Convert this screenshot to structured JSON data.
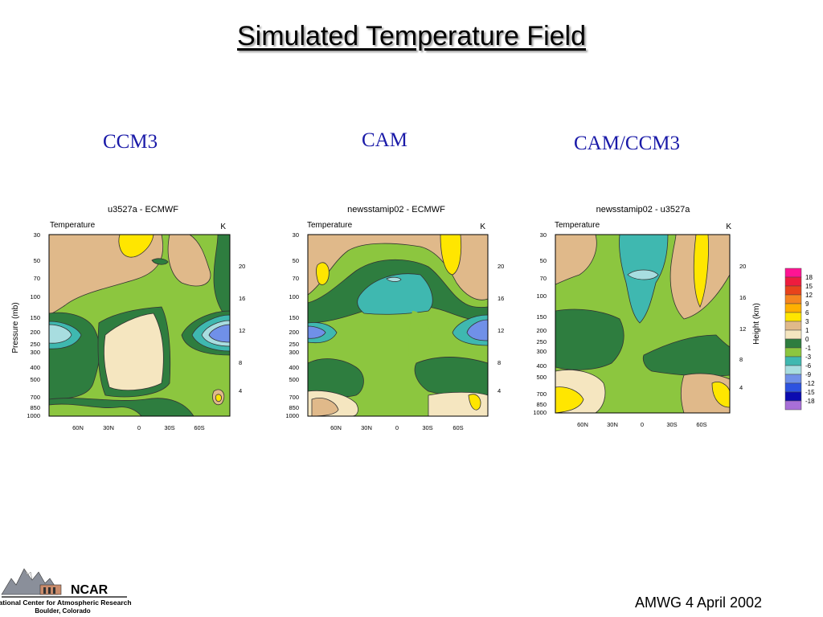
{
  "slide": {
    "title": "Simulated Temperature Field",
    "footer": "AMWG 4 April 2002"
  },
  "columns": [
    "CCM3",
    "CAM",
    "CAM/CCM3"
  ],
  "logo": {
    "name": "NCAR",
    "line1": "National Center for Atmospheric Research",
    "line2": "Boulder, Colorado"
  },
  "colors": {
    "title_text": "#000000",
    "column_label": "#1a1aa8"
  },
  "chart_data": [
    {
      "type": "contour",
      "title": "u3527a - ECMWF",
      "subtitle_left": "Temperature",
      "subtitle_right": "K",
      "ylabel_left": "Pressure (mb)",
      "yticks_left": [
        "30",
        "50",
        "70",
        "100",
        "150",
        "200",
        "250",
        "300",
        "400",
        "500",
        "700",
        "850",
        "1000"
      ],
      "yticks_right": [
        "20",
        "16",
        "12",
        "8",
        "4"
      ],
      "xticks": [
        "60N",
        "30N",
        "0",
        "30S",
        "60S"
      ]
    },
    {
      "type": "contour",
      "title": "newsstamip02 - ECMWF",
      "subtitle_left": "Temperature",
      "subtitle_right": "K",
      "yticks_left": [
        "30",
        "50",
        "70",
        "100",
        "150",
        "200",
        "250",
        "300",
        "400",
        "500",
        "700",
        "850",
        "1000"
      ],
      "yticks_right": [
        "20",
        "16",
        "12",
        "8",
        "4"
      ],
      "xticks": [
        "60N",
        "30N",
        "0",
        "30S",
        "60S"
      ]
    },
    {
      "type": "contour",
      "title": "newsstamip02 - u3527a",
      "subtitle_left": "Temperature",
      "subtitle_right": "K",
      "ylabel_right": "Height (km)",
      "yticks_left": [
        "30",
        "50",
        "70",
        "100",
        "150",
        "200",
        "250",
        "300",
        "400",
        "500",
        "700",
        "850",
        "1000"
      ],
      "yticks_right": [
        "20",
        "16",
        "12",
        "8",
        "4"
      ],
      "xticks": [
        "60N",
        "30N",
        "0",
        "30S",
        "60S"
      ]
    }
  ],
  "colorbar": {
    "labels": [
      "18",
      "15",
      "12",
      "9",
      "6",
      "3",
      "1",
      "0",
      "-1",
      "-3",
      "-6",
      "-9",
      "-12",
      "-15",
      "-18"
    ],
    "colors": [
      "#ff1493",
      "#ee1c3e",
      "#e8431b",
      "#f5851f",
      "#ffb000",
      "#ffe600",
      "#e0b98a",
      "#f5e6c0",
      "#2e7d3f",
      "#8cc63f",
      "#3fb8b0",
      "#a8dde0",
      "#7090e8",
      "#2d52e0",
      "#0b0bb0",
      "#a86fd8"
    ]
  }
}
